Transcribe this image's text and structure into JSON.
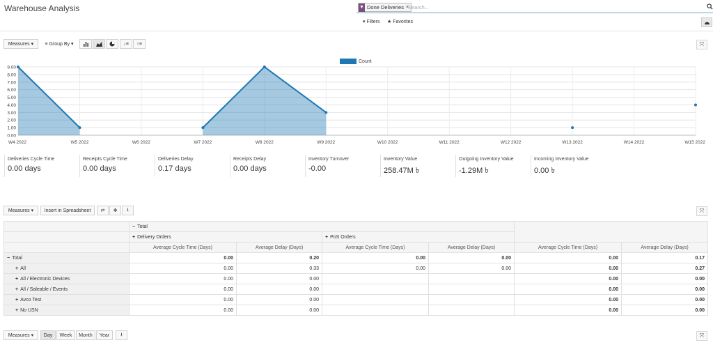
{
  "app": {
    "title": "Warehouse Analysis"
  },
  "search": {
    "facet_label": "Done Deliveries",
    "facet_remove": "×",
    "placeholder": "Search...",
    "search_icon": "search-icon",
    "filters_label": "Filters",
    "favorites_label": "Favorites"
  },
  "graph_toolbar": {
    "measures_label": "Measures",
    "group_by_label": "Group By"
  },
  "chart_data": {
    "type": "area",
    "categories": [
      "W4 2022",
      "W5 2022",
      "W6 2022",
      "W7 2022",
      "W8 2022",
      "W9 2022",
      "W10 2022",
      "W11 2022",
      "W12 2022",
      "W13 2022",
      "W14 2022",
      "W15 2022"
    ],
    "series": [
      {
        "name": "Count",
        "values": [
          9,
          1,
          null,
          1,
          9,
          3,
          null,
          null,
          null,
          1,
          null,
          4
        ],
        "color": "#1f77b4"
      }
    ],
    "yticks": [
      "0.00",
      "1.00",
      "2.00",
      "3.00",
      "4.00",
      "5.00",
      "6.00",
      "7.00",
      "8.00",
      "9.00"
    ],
    "ylim": [
      0,
      9
    ],
    "legend": "top-center",
    "grid": true
  },
  "kpis": [
    {
      "label": "Deliveries Cycle Time",
      "value": "0.00 days"
    },
    {
      "label": "Receipts Cycle Time",
      "value": "0.00 days"
    },
    {
      "label": "Deliveries Delay",
      "value": "0.17 days"
    },
    {
      "label": "Receipts Delay",
      "value": "0.00 days"
    },
    {
      "label": "Inventory Turnover",
      "value": "-0.00"
    },
    {
      "label": "Inventory Value",
      "value": "258.47M ৳"
    },
    {
      "label": "Outgoing Inventory Value",
      "value": "-1.29M ৳"
    },
    {
      "label": "Incoming Inventory Value",
      "value": "0.00 ৳"
    }
  ],
  "pivot_toolbar": {
    "measures_label": "Measures",
    "insert_label": "Insert in Spreadsheet"
  },
  "pivot": {
    "total_header": "Total",
    "group_headers": [
      "Delivery Orders",
      "PoS Orders"
    ],
    "measure_headers": [
      "Average Cycle Time (Days)",
      "Average Delay (Days)",
      "Average Cycle Time (Days)",
      "Average Delay (Days)",
      "Average Cycle Time (Days)",
      "Average Delay (Days)"
    ],
    "rows": [
      {
        "label": "Total",
        "cells": [
          "0.00",
          "0.20",
          "0.00",
          "0.00",
          "0.00",
          "0.17"
        ]
      },
      {
        "label": "All",
        "cells": [
          "0.00",
          "0.33",
          "0.00",
          "0.00",
          "0.00",
          "0.27"
        ]
      },
      {
        "label": "All / Electronic Devices",
        "cells": [
          "0.00",
          "0.00",
          "",
          "",
          "0.00",
          "0.00"
        ]
      },
      {
        "label": "All / Saleable / Events",
        "cells": [
          "0.00",
          "0.00",
          "",
          "",
          "0.00",
          "0.00"
        ]
      },
      {
        "label": "Avco Test",
        "cells": [
          "0.00",
          "0.00",
          "",
          "",
          "0.00",
          "0.00"
        ]
      },
      {
        "label": "No USN",
        "cells": [
          "0.00",
          "0.00",
          "",
          "",
          "0.00",
          "0.00"
        ]
      }
    ]
  },
  "cohort_toolbar": {
    "measures_label": "Measures",
    "intervals": [
      "Day",
      "Week",
      "Month",
      "Year"
    ]
  }
}
